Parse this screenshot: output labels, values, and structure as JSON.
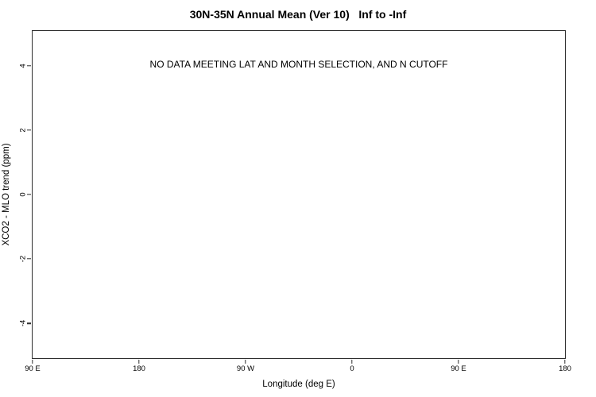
{
  "colors": {
    "bg": "#ffffff",
    "axis": "#2e2e2e",
    "text": "#000000"
  },
  "chart_data": {
    "type": "scatter",
    "title": "30N-35N Annual Mean (Ver 10)   Inf to -Inf",
    "annotation": "NO DATA MEETING LAT AND MONTH SELECTION, AND N CUTOFF",
    "xlabel": "Longitude (deg E)",
    "ylabel": "XCO2 - MLO trend (ppm)",
    "x_tick_labels": [
      "90 E",
      "180",
      "90 W",
      "0",
      "90 E",
      "180"
    ],
    "y_tick_labels": [
      "4",
      "2",
      "0",
      "-2",
      "-4"
    ],
    "y_tick_values": [
      4,
      2,
      0,
      -2,
      -4
    ],
    "ylim": [
      -5.08,
      5.08
    ],
    "grid": false,
    "legend": null,
    "series": []
  }
}
